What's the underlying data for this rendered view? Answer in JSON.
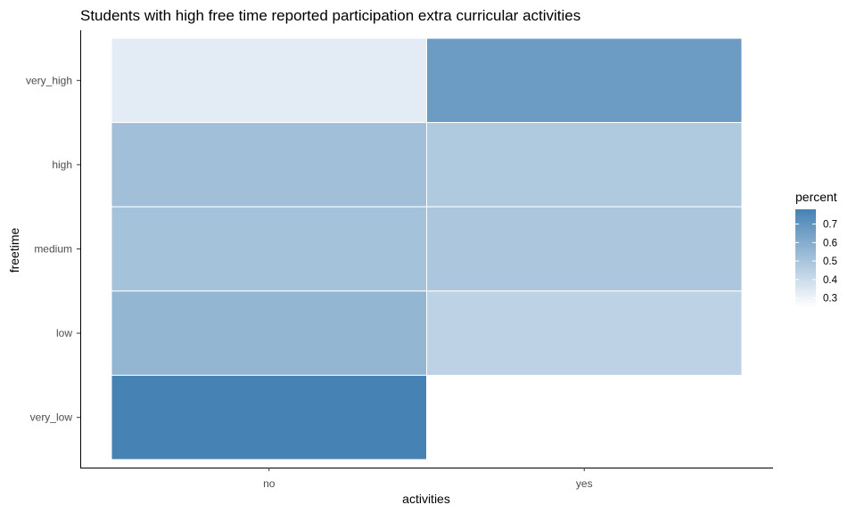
{
  "chart_data": {
    "type": "heatmap",
    "title": "Students with high free time reported participation extra curricular activities",
    "xlabel": "activities",
    "ylabel": "freetime",
    "x_categories": [
      "no",
      "yes"
    ],
    "y_categories": [
      "very_low",
      "low",
      "medium",
      "high",
      "very_high"
    ],
    "cells": [
      {
        "x": "no",
        "y": "very_high",
        "value": 0.33
      },
      {
        "x": "yes",
        "y": "very_high",
        "value": 0.67
      },
      {
        "x": "no",
        "y": "high",
        "value": 0.52
      },
      {
        "x": "yes",
        "y": "high",
        "value": 0.48
      },
      {
        "x": "no",
        "y": "medium",
        "value": 0.51
      },
      {
        "x": "yes",
        "y": "medium",
        "value": 0.49
      },
      {
        "x": "no",
        "y": "low",
        "value": 0.56
      },
      {
        "x": "yes",
        "y": "low",
        "value": 0.44
      },
      {
        "x": "no",
        "y": "very_low",
        "value": 0.78
      }
    ],
    "legend": {
      "title": "percent",
      "ticks": [
        "0.3",
        "0.4",
        "0.5",
        "0.6",
        "0.7"
      ],
      "tick_values": [
        0.3,
        0.4,
        0.5,
        0.6,
        0.7
      ],
      "range": [
        0.25,
        0.78
      ],
      "low_color": "#ffffff",
      "high_color": "#4682b4"
    },
    "cell_border_color": "#ffffff",
    "axis_color": "#000000"
  }
}
